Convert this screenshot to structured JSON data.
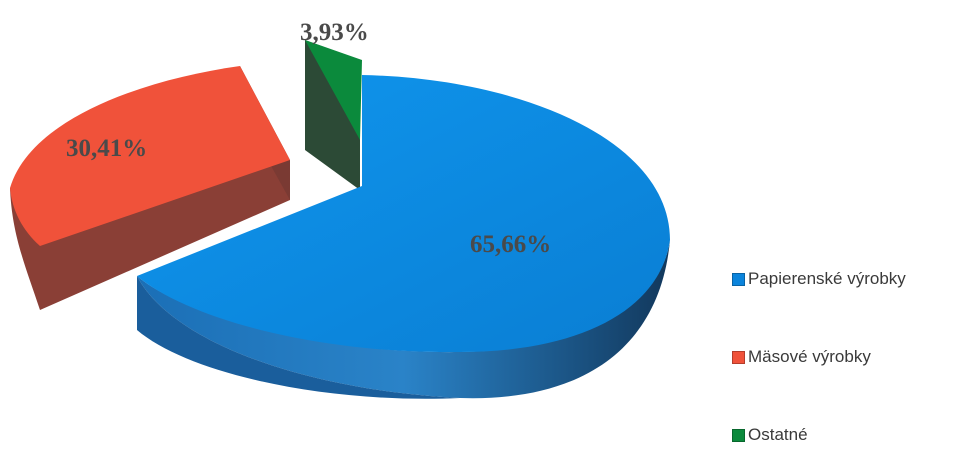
{
  "chart_data": {
    "type": "pie",
    "title": "",
    "slices": [
      {
        "label": "Papierenské výrobky",
        "value": 65.66,
        "display": "65,66%",
        "color": "#0b84dc",
        "side": "#1f4f7a"
      },
      {
        "label": "Mäsové výrobky",
        "value": 30.41,
        "display": "30,41%",
        "color": "#f0523a",
        "side": "#8a3f36"
      },
      {
        "label": "Ostatné",
        "value": 3.93,
        "display": "3,93%",
        "color": "#0b8a3c",
        "side": "#2c4a36"
      }
    ],
    "legend_position": "right",
    "style": "3d-exploded"
  }
}
